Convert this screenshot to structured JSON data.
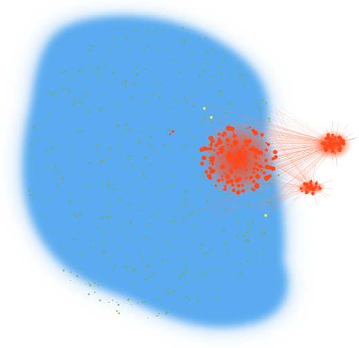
{
  "colors": {
    "background": "#ffffff",
    "main_cluster": "#5aabf0",
    "main_cluster_edge": "#8cc4f4",
    "minor_nodes": "#7fae3a",
    "hub_cluster": "#ff4a1c",
    "hub_edges": "#ff8a6a",
    "highlight_nodes": "#f2ef5a"
  }
}
